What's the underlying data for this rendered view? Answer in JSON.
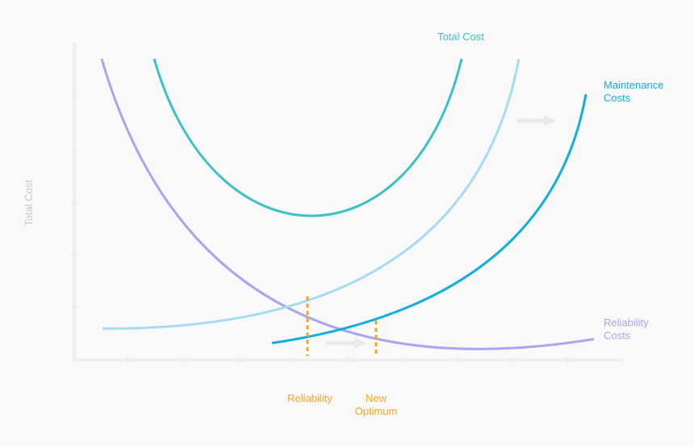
{
  "y_axis_label": "Total Cost",
  "curves": {
    "total_cost": {
      "label": "Total Cost",
      "color": "#3ec1c6"
    },
    "maintenance_costs": {
      "label_line1": "Maintenance",
      "label_line2": "Costs",
      "color": "#12aee0"
    },
    "shifted_maintenance": {
      "color": "#a6dcf2"
    },
    "reliability_costs": {
      "label_line1": "Reliability",
      "label_line2": "Costs",
      "color": "#aaa5ef"
    }
  },
  "markers": {
    "reliability": {
      "label": "Reliability",
      "color": "#f6a623"
    },
    "new_optimum": {
      "label_line1": "New",
      "label_line2": "Optimum",
      "color": "#f6a623"
    }
  },
  "colors": {
    "background": "#f9f9f9",
    "axis": "#eeeeee",
    "axis_label": "#c8c8c8",
    "arrow": "#e9e9e9"
  }
}
